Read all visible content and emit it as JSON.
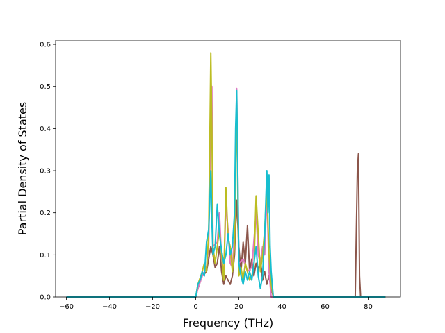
{
  "chart_data": {
    "type": "line",
    "title": "",
    "xlabel": "Frequency (THz)",
    "ylabel": "Partial Density of States",
    "xlim": [
      -65,
      95
    ],
    "ylim": [
      0,
      0.61
    ],
    "xticks": [
      -60,
      -40,
      -20,
      0,
      20,
      40,
      60,
      80
    ],
    "yticks": [
      0.0,
      0.1,
      0.2,
      0.3,
      0.4,
      0.5,
      0.6
    ],
    "xtick_labels": [
      "−60",
      "−40",
      "−20",
      "0",
      "20",
      "40",
      "60",
      "80"
    ],
    "ytick_labels": [
      "0.0",
      "0.1",
      "0.2",
      "0.3",
      "0.4",
      "0.5",
      "0.6"
    ],
    "grid": false,
    "legend": "none",
    "series": [
      {
        "color": "#8c564b",
        "points": [
          [
            -60,
            0
          ],
          [
            0,
            0
          ],
          [
            1,
            0.02
          ],
          [
            3,
            0.05
          ],
          [
            5,
            0.06
          ],
          [
            6,
            0.09
          ],
          [
            7,
            0.12
          ],
          [
            8,
            0.1
          ],
          [
            9,
            0.07
          ],
          [
            10,
            0.08
          ],
          [
            11,
            0.12
          ],
          [
            12,
            0.06
          ],
          [
            13,
            0.03
          ],
          [
            14,
            0.05
          ],
          [
            15,
            0.04
          ],
          [
            16,
            0.03
          ],
          [
            17,
            0.05
          ],
          [
            18,
            0.1
          ],
          [
            19,
            0.23
          ],
          [
            20,
            0.12
          ],
          [
            21,
            0.06
          ],
          [
            22,
            0.13
          ],
          [
            23,
            0.08
          ],
          [
            24,
            0.17
          ],
          [
            25,
            0.06
          ],
          [
            26,
            0.09
          ],
          [
            27,
            0.05
          ],
          [
            28,
            0.08
          ],
          [
            29,
            0.06
          ],
          [
            30,
            0.09
          ],
          [
            31,
            0.04
          ],
          [
            32,
            0.06
          ],
          [
            33,
            0.03
          ],
          [
            34,
            0.05
          ],
          [
            35,
            0.02
          ],
          [
            36,
            0
          ],
          [
            74,
            0
          ],
          [
            75,
            0.3
          ],
          [
            75.5,
            0.34
          ],
          [
            76,
            0.05
          ],
          [
            76.5,
            0
          ],
          [
            88,
            0
          ]
        ]
      },
      {
        "color": "#e377c2",
        "points": [
          [
            -60,
            0
          ],
          [
            0,
            0
          ],
          [
            1,
            0.02
          ],
          [
            3,
            0.05
          ],
          [
            5,
            0.07
          ],
          [
            6,
            0.12
          ],
          [
            7,
            0.42
          ],
          [
            7.5,
            0.5
          ],
          [
            8,
            0.12
          ],
          [
            10,
            0.13
          ],
          [
            11,
            0.2
          ],
          [
            12,
            0.09
          ],
          [
            13,
            0.05
          ],
          [
            14,
            0.22
          ],
          [
            15,
            0.16
          ],
          [
            16,
            0.08
          ],
          [
            17,
            0.07
          ],
          [
            18,
            0.15
          ],
          [
            18.5,
            0.3
          ],
          [
            19,
            0.495
          ],
          [
            19.5,
            0.3
          ],
          [
            20,
            0.08
          ],
          [
            22,
            0.09
          ],
          [
            24,
            0.06
          ],
          [
            26,
            0.07
          ],
          [
            28,
            0.2
          ],
          [
            29,
            0.1
          ],
          [
            30,
            0.08
          ],
          [
            31,
            0.12
          ],
          [
            32,
            0.1
          ],
          [
            33,
            0.25
          ],
          [
            34,
            0.06
          ],
          [
            35,
            0
          ],
          [
            88,
            0
          ]
        ]
      },
      {
        "color": "#bcbd22",
        "points": [
          [
            -60,
            0
          ],
          [
            0,
            0
          ],
          [
            1,
            0.03
          ],
          [
            3,
            0.06
          ],
          [
            4,
            0.08
          ],
          [
            5,
            0.06
          ],
          [
            6,
            0.15
          ],
          [
            6.5,
            0.35
          ],
          [
            7,
            0.58
          ],
          [
            7.5,
            0.4
          ],
          [
            8,
            0.12
          ],
          [
            9,
            0.08
          ],
          [
            10,
            0.12
          ],
          [
            11,
            0.16
          ],
          [
            12,
            0.1
          ],
          [
            13,
            0.04
          ],
          [
            14,
            0.26
          ],
          [
            15,
            0.14
          ],
          [
            16,
            0.12
          ],
          [
            17,
            0.06
          ],
          [
            18,
            0.12
          ],
          [
            18.5,
            0.3
          ],
          [
            19,
            0.47
          ],
          [
            19.5,
            0.25
          ],
          [
            20,
            0.05
          ],
          [
            21,
            0.07
          ],
          [
            22,
            0.04
          ],
          [
            23,
            0.08
          ],
          [
            24,
            0.06
          ],
          [
            25,
            0.04
          ],
          [
            26,
            0.05
          ],
          [
            27,
            0.07
          ],
          [
            28,
            0.24
          ],
          [
            29,
            0.15
          ],
          [
            30,
            0.06
          ],
          [
            31,
            0.1
          ],
          [
            32,
            0.16
          ],
          [
            33,
            0.26
          ],
          [
            34,
            0.1
          ],
          [
            35,
            0.03
          ],
          [
            36,
            0
          ],
          [
            88,
            0
          ]
        ]
      },
      {
        "color": "#17becf",
        "points": [
          [
            -60,
            0
          ],
          [
            0,
            0
          ],
          [
            1,
            0.03
          ],
          [
            2,
            0.04
          ],
          [
            3,
            0.06
          ],
          [
            4,
            0.05
          ],
          [
            5,
            0.13
          ],
          [
            6,
            0.16
          ],
          [
            6.5,
            0.22
          ],
          [
            7,
            0.3
          ],
          [
            7.5,
            0.18
          ],
          [
            8,
            0.1
          ],
          [
            9,
            0.12
          ],
          [
            10,
            0.22
          ],
          [
            11,
            0.15
          ],
          [
            12,
            0.11
          ],
          [
            13,
            0.08
          ],
          [
            14,
            0.1
          ],
          [
            15,
            0.15
          ],
          [
            16,
            0.1
          ],
          [
            17,
            0.12
          ],
          [
            18,
            0.2
          ],
          [
            18.5,
            0.4
          ],
          [
            19,
            0.49
          ],
          [
            19.5,
            0.3
          ],
          [
            20,
            0.08
          ],
          [
            21,
            0.05
          ],
          [
            22,
            0.03
          ],
          [
            23,
            0.06
          ],
          [
            24,
            0.04
          ],
          [
            25,
            0.06
          ],
          [
            26,
            0.04
          ],
          [
            27,
            0.08
          ],
          [
            28,
            0.12
          ],
          [
            29,
            0.05
          ],
          [
            30,
            0.02
          ],
          [
            31,
            0.05
          ],
          [
            32,
            0.15
          ],
          [
            33,
            0.3
          ],
          [
            33.5,
            0.2
          ],
          [
            34,
            0.29
          ],
          [
            34.5,
            0.12
          ],
          [
            35,
            0.06
          ],
          [
            36,
            0
          ],
          [
            88,
            0
          ]
        ]
      }
    ]
  }
}
